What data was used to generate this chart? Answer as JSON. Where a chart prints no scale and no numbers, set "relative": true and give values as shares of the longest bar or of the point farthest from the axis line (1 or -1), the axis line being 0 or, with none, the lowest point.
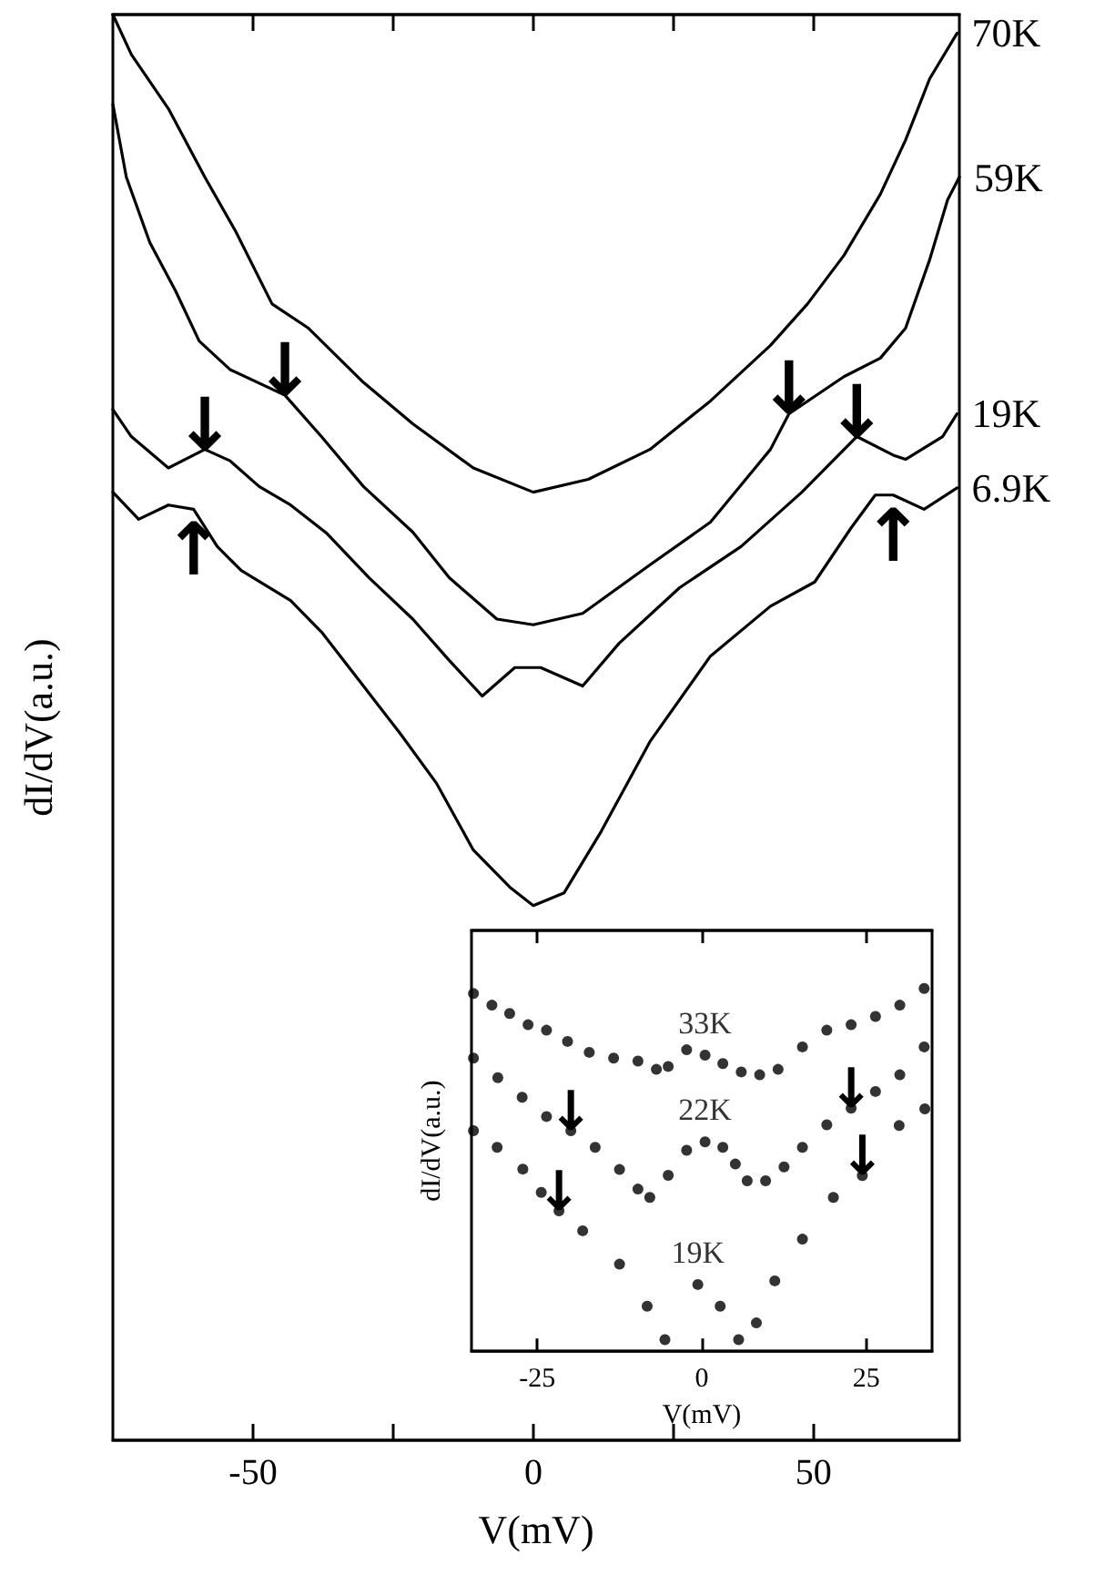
{
  "chart_data": [
    {
      "type": "line",
      "xlabel": "V(mV)",
      "ylabel": "dI/dV(a.u.)",
      "relative": true,
      "xlim": [
        -75,
        76
      ],
      "xticks": [
        -50,
        {
          "value": -25,
          "label": null
        },
        0,
        {
          "value": 25,
          "label": null
        },
        50
      ],
      "marker": "none",
      "series": [
        {
          "name": "70K",
          "color": "#000000",
          "x": [
            -75,
            -71.7,
            -65.1,
            -58.6,
            -53.1,
            -46.6,
            -40.1,
            -30.3,
            -21.5,
            -10.7,
            0,
            9.8,
            20.8,
            31.6,
            42.3,
            48.9,
            55.4,
            61.9,
            66.4,
            70.7,
            75.6
          ],
          "values": [
            1.0,
            0.972,
            0.934,
            0.886,
            0.848,
            0.797,
            0.78,
            0.742,
            0.713,
            0.682,
            0.665,
            0.674,
            0.695,
            0.729,
            0.768,
            0.797,
            0.831,
            0.874,
            0.912,
            0.955,
            0.987
          ]
        },
        {
          "name": "59K",
          "color": "#000000",
          "x": [
            -75,
            -72.6,
            -68.4,
            -63.8,
            -59.6,
            -54.1,
            -44.3,
            -37.8,
            -30.3,
            -21.5,
            -15,
            -6.5,
            0,
            8.8,
            20.8,
            31.6,
            42.3,
            45.6,
            55.4,
            61.9,
            66.4,
            70.7,
            73.9,
            76
          ],
          "values": [
            0.937,
            0.886,
            0.84,
            0.806,
            0.771,
            0.751,
            0.733,
            0.704,
            0.669,
            0.637,
            0.605,
            0.576,
            0.572,
            0.58,
            0.614,
            0.644,
            0.695,
            0.72,
            0.746,
            0.759,
            0.78,
            0.828,
            0.87,
            0.886
          ]
        },
        {
          "name": "19K",
          "color": "#000000",
          "x": [
            -75,
            -71.7,
            -65.1,
            -58.6,
            -54.1,
            -48.9,
            -43.3,
            -36.8,
            -29.3,
            -21.5,
            -15,
            -9.1,
            -3.3,
            1.3,
            8.8,
            15.3,
            26.1,
            37.1,
            47.9,
            57.7,
            64.2,
            66.4,
            73,
            75.6
          ],
          "values": [
            0.723,
            0.704,
            0.682,
            0.695,
            0.687,
            0.669,
            0.656,
            0.636,
            0.605,
            0.576,
            0.547,
            0.522,
            0.542,
            0.542,
            0.529,
            0.559,
            0.598,
            0.627,
            0.665,
            0.704,
            0.691,
            0.688,
            0.704,
            0.72
          ]
        },
        {
          "name": "6.9K",
          "color": "#000000",
          "x": [
            -75,
            -70.4,
            -65.1,
            -60.6,
            -56.4,
            -52.1,
            -43.3,
            -37.8,
            -30.3,
            -23.8,
            -17.3,
            -10.7,
            -4.2,
            0,
            5.5,
            12.1,
            20.8,
            31.6,
            42.3,
            50.2,
            56.7,
            61,
            64.2,
            69.7,
            75.6
          ],
          "values": [
            0.665,
            0.646,
            0.656,
            0.653,
            0.627,
            0.61,
            0.589,
            0.567,
            0.529,
            0.496,
            0.461,
            0.414,
            0.388,
            0.375,
            0.384,
            0.427,
            0.49,
            0.55,
            0.585,
            0.602,
            0.64,
            0.663,
            0.663,
            0.653,
            0.668
          ]
        }
      ],
      "annotations": [
        {
          "text": "↓",
          "x": -44.3,
          "y": 0.733
        },
        {
          "text": "↓",
          "x": -58.6,
          "y": 0.695
        },
        {
          "text": "↑",
          "x": -60.6,
          "y": 0.653
        },
        {
          "text": "↓",
          "x": 45.6,
          "y": 0.72
        },
        {
          "text": "↓",
          "x": 57.7,
          "y": 0.704
        },
        {
          "text": "↑",
          "x": 64.2,
          "y": 0.663
        }
      ]
    },
    {
      "type": "scatter",
      "xlabel": "V(mV)",
      "ylabel": "dI/dV(a.u.)",
      "relative": true,
      "xlim": [
        -35,
        35
      ],
      "xticks": [
        -25,
        0,
        25
      ],
      "marker": "circle",
      "series": [
        {
          "name": "33K",
          "color": "#000000",
          "x": [
            -34.7,
            -31.9,
            -29.2,
            -26.4,
            -23.6,
            -20.4,
            -17.1,
            -13.4,
            -9.7,
            -6.9,
            -5.1,
            -2.3,
            0.5,
            3.2,
            6,
            8.8,
            11.6,
            15.3,
            19,
            22.7,
            26.4,
            30.1,
            33.8
          ],
          "values": [
            0.986,
            0.954,
            0.931,
            0.9,
            0.885,
            0.854,
            0.824,
            0.808,
            0.8,
            0.777,
            0.785,
            0.831,
            0.816,
            0.793,
            0.77,
            0.762,
            0.777,
            0.839,
            0.885,
            0.9,
            0.923,
            0.954,
            1.0
          ]
        },
        {
          "name": "22K",
          "color": "#000000",
          "x": [
            -34.7,
            -31,
            -27.3,
            -23.6,
            -19.9,
            -16.2,
            -12.5,
            -9.7,
            -7.9,
            -5.1,
            -2.3,
            0.5,
            3.2,
            5.1,
            6.9,
            9.7,
            12.5,
            15.3,
            19,
            22.7,
            26.4,
            30.1,
            33.8
          ],
          "values": [
            0.808,
            0.754,
            0.7,
            0.647,
            0.608,
            0.562,
            0.501,
            0.447,
            0.424,
            0.485,
            0.554,
            0.577,
            0.562,
            0.516,
            0.47,
            0.47,
            0.508,
            0.562,
            0.624,
            0.67,
            0.716,
            0.762,
            0.839
          ]
        },
        {
          "name": "19K",
          "color": "#000000",
          "x": [
            -34.7,
            -31.1,
            -27.2,
            -24.4,
            -21.7,
            -18.1,
            -12.5,
            -8.3,
            -5.6,
            -0.6,
            2.8,
            5.6,
            8.3,
            11.1,
            15.3,
            20,
            24.4,
            30,
            33.9
          ],
          "values": [
            0.608,
            0.562,
            0.502,
            0.438,
            0.387,
            0.332,
            0.24,
            0.124,
            0.032,
            0.184,
            0.124,
            0.032,
            0.078,
            0.194,
            0.309,
            0.424,
            0.484,
            0.622,
            0.668
          ]
        }
      ],
      "annotations": [
        {
          "text": "↓",
          "x": -19.9,
          "y": 0.608
        },
        {
          "text": "↓",
          "x": -21.7,
          "y": 0.387
        },
        {
          "text": "↓",
          "x": 22.7,
          "y": 0.67
        },
        {
          "text": "↓",
          "x": 24.4,
          "y": 0.484
        }
      ]
    }
  ]
}
